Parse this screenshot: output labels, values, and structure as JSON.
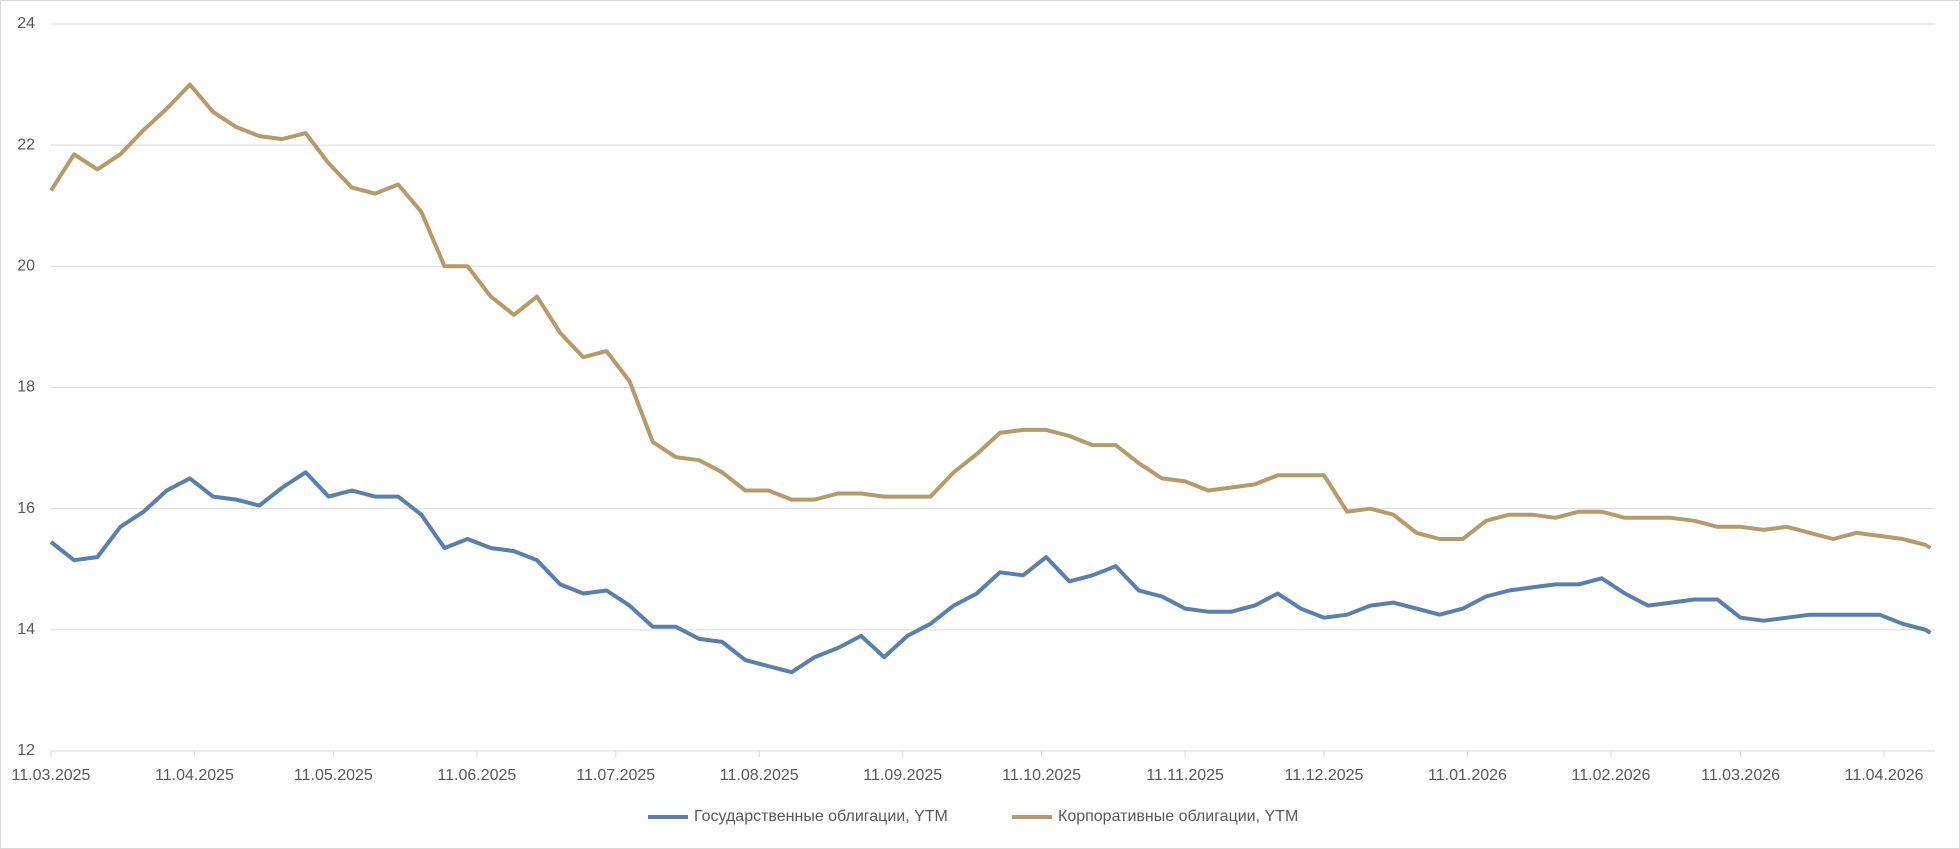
{
  "chart_data": {
    "type": "line",
    "x": [
      "2025-03-11",
      "2025-03-16",
      "2025-03-21",
      "2025-03-26",
      "2025-03-31",
      "2025-04-05",
      "2025-04-10",
      "2025-04-15",
      "2025-04-20",
      "2025-04-25",
      "2025-04-30",
      "2025-05-05",
      "2025-05-10",
      "2025-05-15",
      "2025-05-20",
      "2025-05-25",
      "2025-05-30",
      "2025-06-04",
      "2025-06-09",
      "2025-06-14",
      "2025-06-19",
      "2025-06-24",
      "2025-06-29",
      "2025-07-04",
      "2025-07-09",
      "2025-07-14",
      "2025-07-19",
      "2025-07-24",
      "2025-07-29",
      "2025-08-03",
      "2025-08-08",
      "2025-08-13",
      "2025-08-18",
      "2025-08-23",
      "2025-08-28",
      "2025-09-02",
      "2025-09-07",
      "2025-09-12",
      "2025-09-17",
      "2025-09-22",
      "2025-09-27",
      "2025-10-02",
      "2025-10-07",
      "2025-10-12",
      "2025-10-17",
      "2025-10-22",
      "2025-10-27",
      "2025-11-01",
      "2025-11-06",
      "2025-11-11",
      "2025-11-16",
      "2025-11-21",
      "2025-11-26",
      "2025-12-01",
      "2025-12-06",
      "2025-12-11",
      "2025-12-16",
      "2025-12-21",
      "2025-12-26",
      "2025-12-31",
      "2026-01-05",
      "2026-01-10",
      "2026-01-15",
      "2026-01-20",
      "2026-01-25",
      "2026-01-30",
      "2026-02-04",
      "2026-02-09",
      "2026-02-14",
      "2026-02-19",
      "2026-02-24",
      "2026-03-01",
      "2026-03-06",
      "2026-03-11",
      "2026-03-16",
      "2026-03-21",
      "2026-03-26",
      "2026-03-31",
      "2026-04-05",
      "2026-04-10",
      "2026-04-15",
      "2026-04-20",
      "2026-04-21"
    ],
    "series": [
      {
        "name": "Государственные облигации, YTM",
        "color": "#5b7ead",
        "values": [
          15.45,
          15.15,
          15.2,
          15.7,
          15.95,
          16.3,
          16.5,
          16.2,
          16.15,
          16.05,
          16.35,
          16.6,
          16.2,
          16.3,
          16.2,
          16.2,
          15.9,
          15.35,
          15.5,
          15.35,
          15.3,
          15.15,
          14.75,
          14.6,
          14.65,
          14.4,
          14.05,
          14.05,
          13.85,
          13.8,
          13.5,
          13.4,
          13.3,
          13.55,
          13.7,
          13.9,
          13.55,
          13.9,
          14.1,
          14.4,
          14.6,
          14.95,
          14.9,
          15.2,
          14.8,
          14.9,
          15.05,
          14.65,
          14.55,
          14.35,
          14.3,
          14.3,
          14.4,
          14.6,
          14.35,
          14.2,
          14.25,
          14.4,
          14.45,
          14.35,
          14.25,
          14.35,
          14.55,
          14.65,
          14.7,
          14.75,
          14.75,
          14.85,
          14.6,
          14.4,
          14.45,
          14.5,
          14.5,
          14.2,
          14.15,
          14.2,
          14.25,
          14.25,
          14.25,
          14.25,
          14.1,
          14.0,
          13.95
        ]
      },
      {
        "name": "Корпоративные облигации, YTM",
        "color": "#b39b6d",
        "values": [
          21.25,
          21.85,
          21.6,
          21.85,
          22.25,
          22.6,
          23.0,
          22.55,
          22.3,
          22.15,
          22.1,
          22.2,
          21.7,
          21.3,
          21.2,
          21.35,
          20.9,
          20.0,
          20.0,
          19.5,
          19.2,
          19.5,
          18.9,
          18.5,
          18.6,
          18.1,
          17.1,
          16.85,
          16.8,
          16.6,
          16.3,
          16.3,
          16.15,
          16.15,
          16.25,
          16.25,
          16.2,
          16.2,
          16.2,
          16.6,
          16.9,
          17.25,
          17.3,
          17.3,
          17.2,
          17.05,
          17.05,
          16.75,
          16.5,
          16.45,
          16.3,
          16.35,
          16.4,
          16.55,
          16.55,
          16.55,
          15.95,
          16.0,
          15.9,
          15.6,
          15.5,
          15.5,
          15.8,
          15.9,
          15.9,
          15.85,
          15.95,
          15.95,
          15.85,
          15.85,
          15.85,
          15.8,
          15.7,
          15.7,
          15.65,
          15.7,
          15.6,
          15.5,
          15.6,
          15.55,
          15.5,
          15.4,
          15.35
        ]
      }
    ],
    "xlim": [
      "2025-03-11",
      "2026-04-22"
    ],
    "xticks": [
      {
        "value": "2025-03-11",
        "label": "11.03.2025"
      },
      {
        "value": "2025-04-11",
        "label": "11.04.2025"
      },
      {
        "value": "2025-05-11",
        "label": "11.05.2025"
      },
      {
        "value": "2025-06-11",
        "label": "11.06.2025"
      },
      {
        "value": "2025-07-11",
        "label": "11.07.2025"
      },
      {
        "value": "2025-08-11",
        "label": "11.08.2025"
      },
      {
        "value": "2025-09-11",
        "label": "11.09.2025"
      },
      {
        "value": "2025-10-11",
        "label": "11.10.2025"
      },
      {
        "value": "2025-11-11",
        "label": "11.11.2025"
      },
      {
        "value": "2025-12-11",
        "label": "11.12.2025"
      },
      {
        "value": "2026-01-11",
        "label": "11.01.2026"
      },
      {
        "value": "2026-02-11",
        "label": "11.02.2026"
      },
      {
        "value": "2026-03-11",
        "label": "11.03.2026"
      },
      {
        "value": "2026-04-11",
        "label": "11.04.2026"
      }
    ],
    "ylim": [
      12,
      24
    ],
    "yticks": [
      12,
      14,
      16,
      18,
      20,
      22,
      24
    ],
    "grid": true,
    "legend": "bottom"
  }
}
